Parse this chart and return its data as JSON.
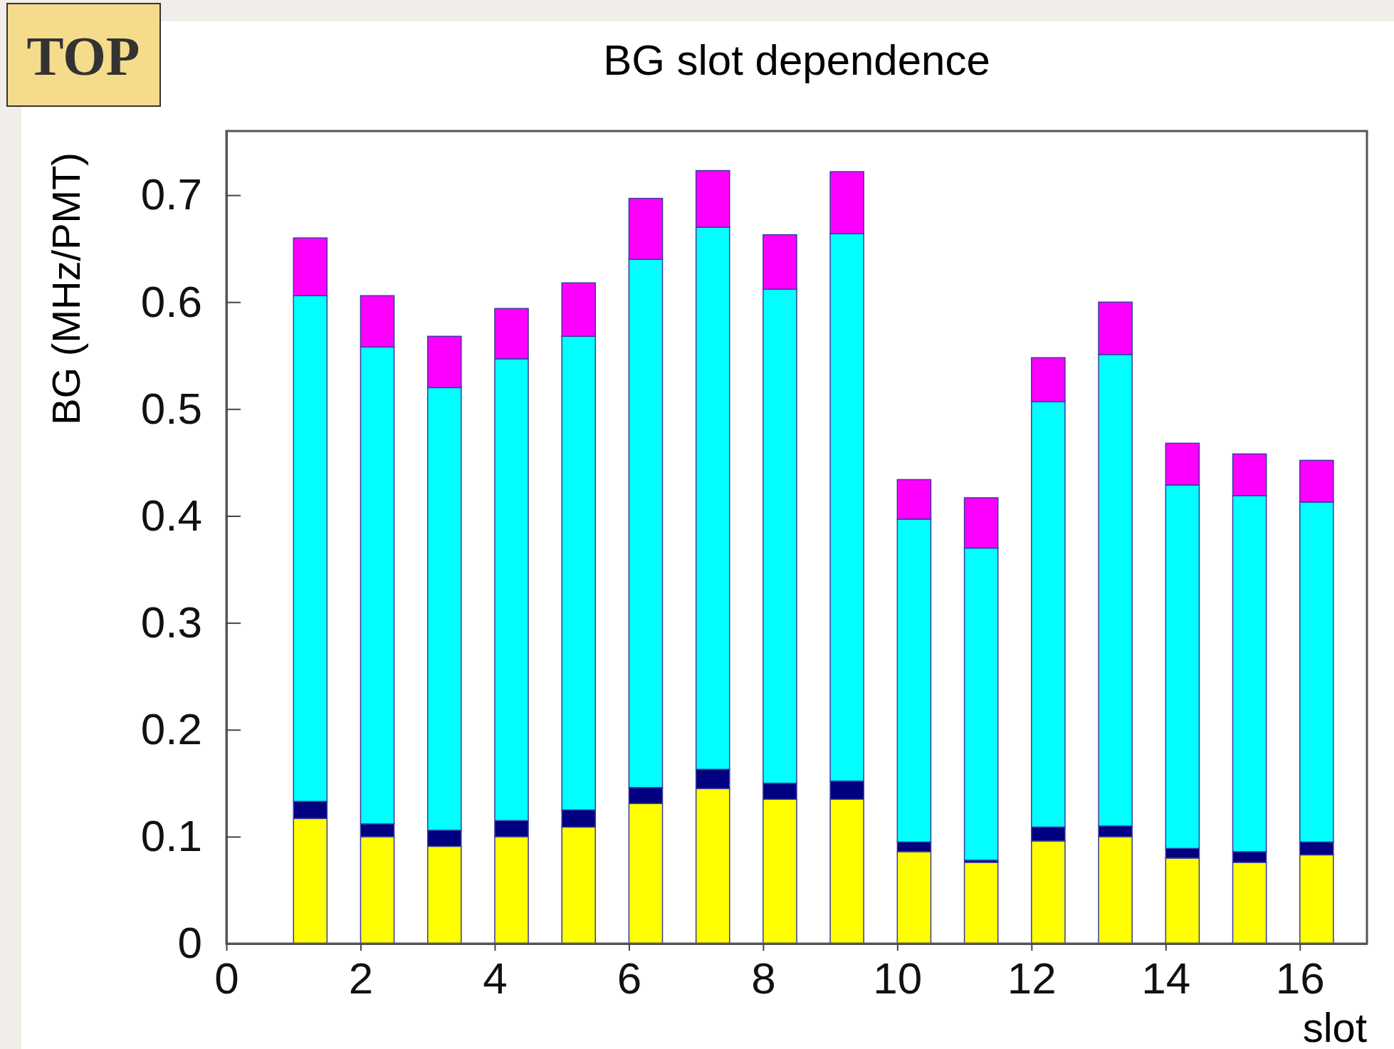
{
  "chart_data": {
    "type": "bar",
    "stacked": true,
    "title": "BG slot dependence",
    "xlabel": "slot",
    "ylabel": "BG (MHz/PMT)",
    "annotations": [
      "TOP"
    ],
    "x": [
      1.25,
      2.25,
      3.25,
      4.25,
      5.25,
      6.25,
      7.25,
      8.25,
      9.25,
      10.25,
      11.25,
      12.25,
      13.25,
      14.25,
      15.25,
      16.25
    ],
    "xlim": [
      0,
      17
    ],
    "xticks": [
      0,
      2,
      4,
      6,
      8,
      10,
      12,
      14,
      16
    ],
    "ylim": [
      0,
      0.76
    ],
    "yticks": [
      0,
      0.1,
      0.2,
      0.3,
      0.4,
      0.5,
      0.6,
      0.7
    ],
    "series": [
      {
        "color": "#ffff00",
        "values": [
          0.117,
          0.1,
          0.091,
          0.1,
          0.109,
          0.131,
          0.145,
          0.135,
          0.135,
          0.086,
          0.076,
          0.096,
          0.1,
          0.08,
          0.076,
          0.083
        ]
      },
      {
        "color": "#000080",
        "values": [
          0.016,
          0.012,
          0.015,
          0.015,
          0.016,
          0.015,
          0.018,
          0.015,
          0.017,
          0.009,
          0.002,
          0.013,
          0.01,
          0.009,
          0.01,
          0.012
        ]
      },
      {
        "color": "#00ffff",
        "values": [
          0.473,
          0.446,
          0.414,
          0.432,
          0.443,
          0.494,
          0.507,
          0.462,
          0.512,
          0.302,
          0.292,
          0.398,
          0.441,
          0.34,
          0.333,
          0.318
        ]
      },
      {
        "color": "#ff00ff",
        "values": [
          0.054,
          0.048,
          0.048,
          0.047,
          0.05,
          0.057,
          0.053,
          0.051,
          0.058,
          0.037,
          0.047,
          0.041,
          0.049,
          0.039,
          0.039,
          0.039
        ]
      }
    ]
  }
}
